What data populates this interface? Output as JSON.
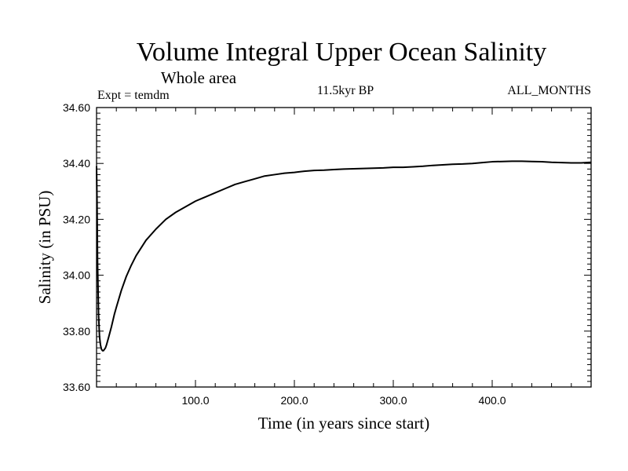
{
  "chart_data": {
    "type": "line",
    "title": "Volume Integral Upper Ocean Salinity",
    "subtitle": "Whole area",
    "left_label": "Expt = temdm",
    "center_label": "11.5kyr BP",
    "right_label": "ALL_MONTHS",
    "xlabel": "Time (in years since start)",
    "ylabel": "Salinity (in PSU)",
    "xlim": [
      0,
      500
    ],
    "ylim": [
      33.6,
      34.6
    ],
    "x_ticks": [
      100,
      200,
      300,
      400
    ],
    "x_tick_labels": [
      "100.0",
      "200.0",
      "300.0",
      "400.0"
    ],
    "y_ticks": [
      33.6,
      33.8,
      34.0,
      34.2,
      34.4,
      34.6
    ],
    "y_tick_labels": [
      "33.60",
      "33.80",
      "34.00",
      "34.20",
      "34.40",
      "34.60"
    ],
    "grid": false,
    "series": [
      {
        "name": "Salinity",
        "color": "#000000",
        "x": [
          0,
          0.5,
          1,
          2,
          3,
          4,
          5,
          6,
          7,
          8,
          9,
          10,
          12,
          15,
          18,
          20,
          25,
          30,
          35,
          40,
          50,
          60,
          70,
          80,
          90,
          100,
          110,
          120,
          130,
          140,
          150,
          160,
          170,
          180,
          190,
          200,
          210,
          220,
          230,
          240,
          250,
          260,
          270,
          280,
          290,
          300,
          310,
          320,
          330,
          340,
          350,
          360,
          370,
          380,
          390,
          400,
          410,
          420,
          430,
          440,
          450,
          460,
          470,
          480,
          490,
          500
        ],
        "values": [
          34.39,
          34.26,
          34.05,
          33.86,
          33.78,
          33.75,
          33.735,
          33.73,
          33.73,
          33.735,
          33.74,
          33.75,
          33.775,
          33.815,
          33.86,
          33.885,
          33.945,
          33.995,
          34.035,
          34.07,
          34.125,
          34.165,
          34.2,
          34.225,
          34.245,
          34.265,
          34.28,
          34.295,
          34.31,
          34.325,
          34.335,
          34.345,
          34.355,
          34.36,
          34.365,
          34.368,
          34.372,
          34.375,
          34.376,
          34.378,
          34.38,
          34.381,
          34.382,
          34.383,
          34.384,
          34.386,
          34.386,
          34.388,
          34.39,
          34.393,
          34.395,
          34.397,
          34.398,
          34.4,
          34.403,
          34.406,
          34.407,
          34.408,
          34.408,
          34.407,
          34.406,
          34.404,
          34.403,
          34.402,
          34.402,
          34.404
        ]
      }
    ]
  }
}
